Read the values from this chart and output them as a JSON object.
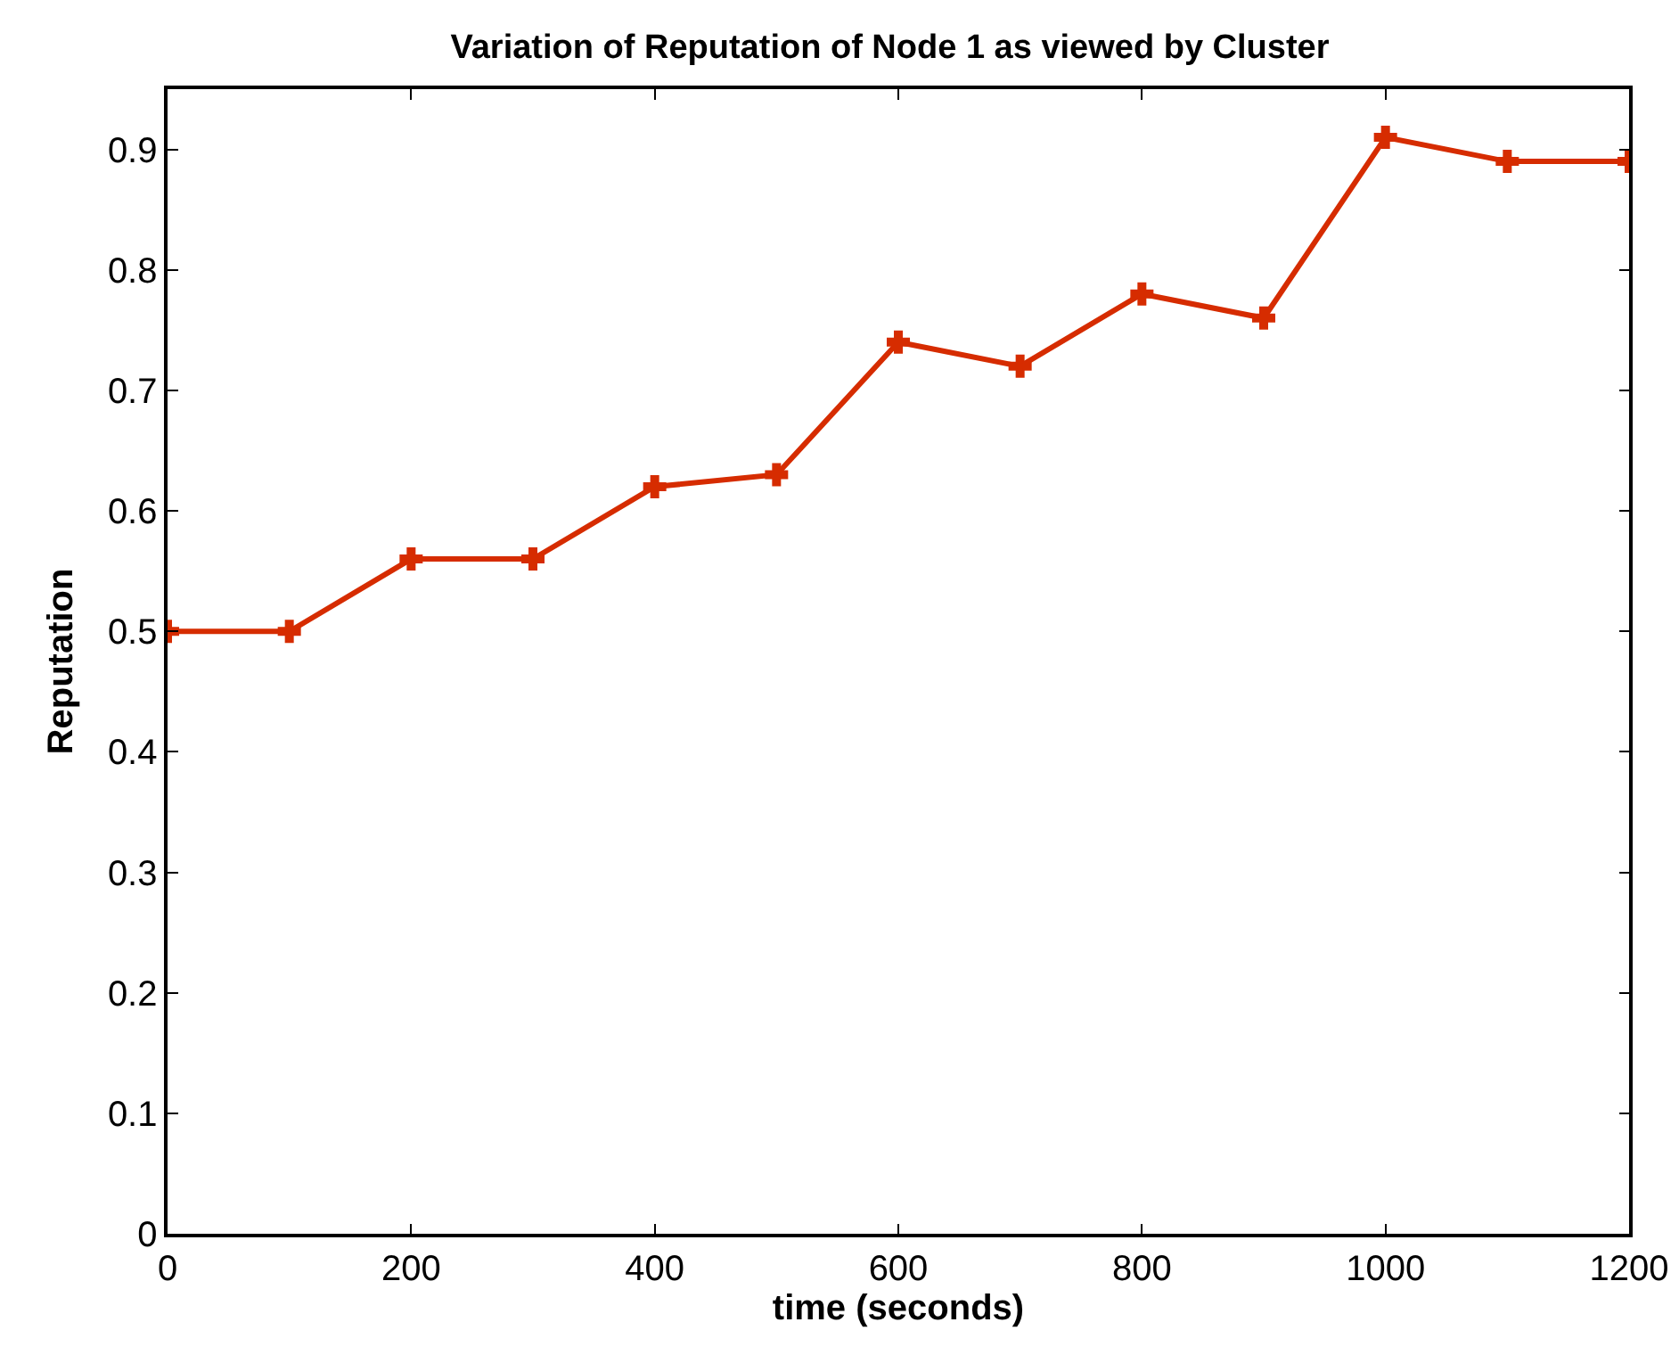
{
  "chart_data": {
    "type": "line",
    "title": "Variation of Reputation of Node 1 as viewed by Cluster",
    "xlabel": "time (seconds)",
    "ylabel": "Reputation",
    "x": [
      0,
      100,
      200,
      300,
      400,
      500,
      600,
      700,
      800,
      900,
      1000,
      1100,
      1200
    ],
    "series": [
      {
        "color": "#d62c00",
        "values": [
          0.5,
          0.5,
          0.56,
          0.56,
          0.62,
          0.63,
          0.74,
          0.72,
          0.78,
          0.76,
          0.91,
          0.89,
          0.89
        ]
      }
    ],
    "xlim": [
      0,
      1200
    ],
    "xticks": [
      0,
      200,
      400,
      600,
      800,
      1000,
      1200
    ],
    "ylim": [
      0,
      0.95
    ],
    "yticks": [
      0,
      0.1,
      0.2,
      0.3,
      0.4,
      0.5,
      0.6,
      0.7,
      0.8,
      0.9
    ],
    "grid": false,
    "marker": "cross",
    "line_style": "solid"
  }
}
